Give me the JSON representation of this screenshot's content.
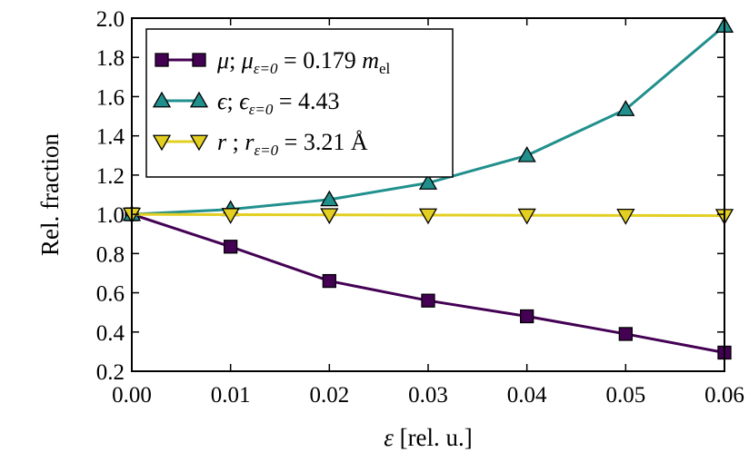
{
  "chart_data": {
    "type": "line",
    "xlabel_symbol": "ε",
    "xlabel_unit": " [rel. u.]",
    "ylabel": "Rel. fraction",
    "xlim": [
      0.0,
      0.06
    ],
    "ylim": [
      0.2,
      2.0
    ],
    "x": [
      0.0,
      0.01,
      0.02,
      0.03,
      0.04,
      0.05,
      0.06
    ],
    "x_ticks": [
      "0.00",
      "0.01",
      "0.02",
      "0.03",
      "0.04",
      "0.05",
      "0.06"
    ],
    "y_ticks_values": [
      0.2,
      0.4,
      0.6,
      0.8,
      1.0,
      1.2,
      1.4,
      1.6,
      1.8,
      2.0
    ],
    "y_ticks": [
      "0.2",
      "0.4",
      "0.6",
      "0.8",
      "1.0",
      "1.2",
      "1.4",
      "1.6",
      "1.8",
      "2.0"
    ],
    "series": [
      {
        "name": "mu",
        "marker": "square",
        "color": "#440154",
        "values": [
          1.0,
          0.835,
          0.66,
          0.56,
          0.48,
          0.39,
          0.295
        ],
        "legend": {
          "symbol": "μ",
          "sep": "; ",
          "sub_symbol": "μ",
          "sub": "ε=0",
          "eq": " = 0.179 ",
          "unit": "m",
          "unit_sub": "el"
        }
      },
      {
        "name": "epsilon",
        "marker": "triangle-up",
        "color": "#21908d",
        "values": [
          1.0,
          1.025,
          1.075,
          1.16,
          1.3,
          1.535,
          1.96
        ],
        "legend": {
          "symbol": "ϵ",
          "sep": "; ",
          "sub_symbol": "ϵ",
          "sub": "ε=0",
          "eq": " = 4.43",
          "unit": "",
          "unit_sub": ""
        }
      },
      {
        "name": "r",
        "marker": "triangle-down",
        "color": "#e3cf22",
        "values": [
          1.0,
          0.998,
          0.997,
          0.996,
          0.995,
          0.994,
          0.993
        ],
        "legend": {
          "symbol": "r",
          "sep": " ; ",
          "sub_symbol": "r",
          "sub": "ε=0",
          "eq": " = 3.21 Å",
          "unit": "",
          "unit_sub": ""
        }
      }
    ],
    "legend_position": "top-left"
  }
}
